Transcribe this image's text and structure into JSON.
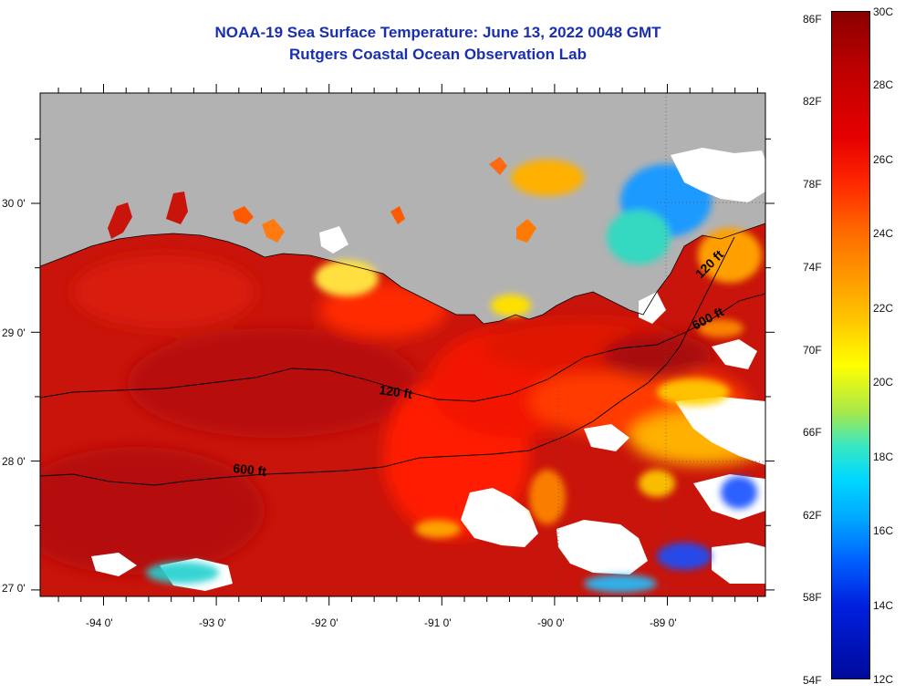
{
  "title": {
    "line1": "NOAA-19 Sea Surface Temperature:  June 13, 2022 0048 GMT",
    "line2": "Rutgers Coastal Ocean Observation Lab"
  },
  "map": {
    "lon_ticks": [
      "-94 0'",
      "-93 0'",
      "-92 0'",
      "-91 0'",
      "-90 0'",
      "-89 0'"
    ],
    "lat_ticks": [
      "30 0'",
      "29 0'",
      "28 0'",
      "27 0'"
    ],
    "contour_labels": [
      "120 ft",
      "600 ft",
      "120 ft",
      "600 ft"
    ],
    "colors": {
      "land": "#b2b2b2",
      "cloud": "#ffffff",
      "warm_sea": "#d61a0c",
      "deep_red": "#b50e0a"
    }
  },
  "colorbar": {
    "fahrenheit_labels": [
      "86F",
      "82F",
      "78F",
      "74F",
      "70F",
      "66F",
      "62F",
      "58F",
      "54F"
    ],
    "celsius_labels": [
      "30C",
      "28C",
      "26C",
      "24C",
      "22C",
      "20C",
      "18C",
      "16C",
      "14C",
      "12C"
    ]
  }
}
